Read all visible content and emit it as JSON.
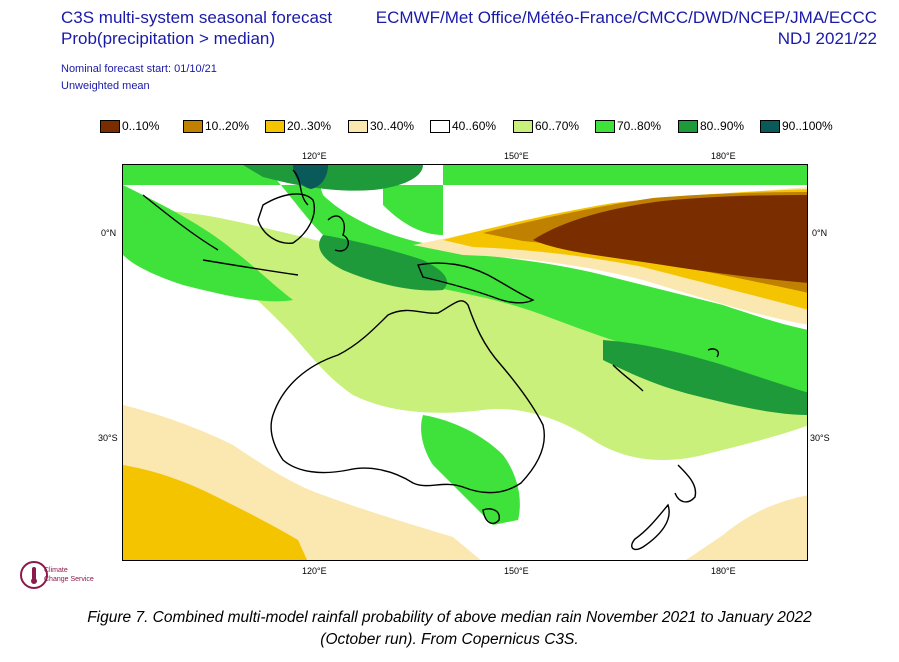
{
  "header": {
    "title_line1": "C3S multi-system seasonal forecast",
    "title_line2": "Prob(precipitation > median)",
    "nominal_start": "Nominal forecast start: 01/10/21",
    "mean_type": "Unweighted mean",
    "centres": "ECMWF/Met Office/Météo-France/CMCC/DWD/NCEP/JMA/ECCC",
    "period": "NDJ 2021/22"
  },
  "legend": [
    {
      "label": "0..10%",
      "color": "#7a2e00"
    },
    {
      "label": "10..20%",
      "color": "#c08000"
    },
    {
      "label": "20..30%",
      "color": "#f5c400"
    },
    {
      "label": "30..40%",
      "color": "#fae8b0"
    },
    {
      "label": "40..60%",
      "color": "#ffffff"
    },
    {
      "label": "60..70%",
      "color": "#c8f07a"
    },
    {
      "label": "70..80%",
      "color": "#3ee23a"
    },
    {
      "label": "80..90%",
      "color": "#1e9a3a"
    },
    {
      "label": "90..100%",
      "color": "#0a5a5a"
    }
  ],
  "axes": {
    "top_lon": [
      "120°E",
      "150°E",
      "180°E"
    ],
    "bottom_lon": [
      "120°E",
      "150°E",
      "180°E"
    ],
    "left_lat": [
      "0°N",
      "30°S"
    ],
    "right_lat": [
      "0°N",
      "30°S"
    ]
  },
  "logo": {
    "line1": "Climate",
    "line2": "Change Service"
  },
  "caption": {
    "line1": "Figure 7. Combined multi-model rainfall probability of above median rain November 2021 to January 2022",
    "line2": "(October run). From Copernicus C3S."
  }
}
